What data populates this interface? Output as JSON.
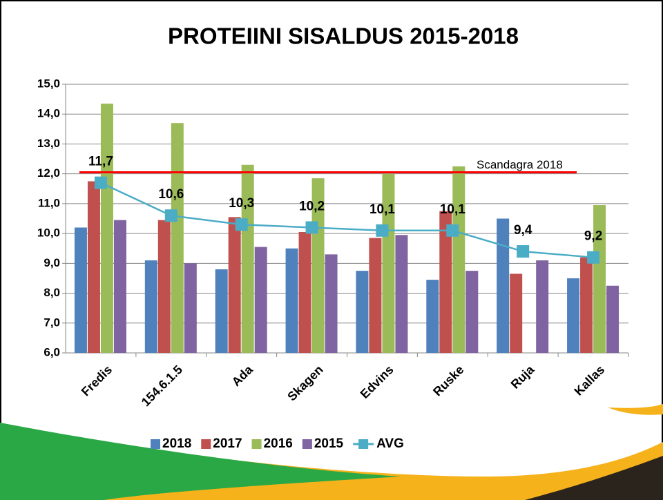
{
  "chart_data": {
    "type": "bar",
    "title": "PROTEIINI SISALDUS 2015-2018",
    "categories": [
      "Fredis",
      "154.6.1.5",
      "Ada",
      "Skagen",
      "Edvins",
      "Ruske",
      "Ruja",
      "Kallas"
    ],
    "series": [
      {
        "name": "2018",
        "color": "#4f81bd",
        "values": [
          10.2,
          9.1,
          8.8,
          9.5,
          8.75,
          8.45,
          10.5,
          8.5
        ]
      },
      {
        "name": "2017",
        "color": "#c0504d",
        "values": [
          11.75,
          10.45,
          10.55,
          10.05,
          9.85,
          10.75,
          8.65,
          9.2
        ]
      },
      {
        "name": "2016",
        "color": "#9bbb59",
        "values": [
          14.35,
          13.7,
          12.3,
          11.85,
          12.0,
          12.25,
          null,
          10.95
        ]
      },
      {
        "name": "2015",
        "color": "#8064a2",
        "values": [
          10.45,
          9.0,
          9.55,
          9.3,
          9.95,
          8.75,
          9.1,
          8.25
        ]
      },
      {
        "name": "AVG",
        "type": "line",
        "color": "#4bacc6",
        "values": [
          11.7,
          10.6,
          10.3,
          10.2,
          10.1,
          10.1,
          9.4,
          9.2
        ],
        "value_labels": [
          "11,7",
          "10,6",
          "10,3",
          "10,2",
          "10,1",
          "10,1",
          "9,4",
          "9,2"
        ]
      }
    ],
    "reference_line": {
      "value": 12.05,
      "label": "Scandagra 2018",
      "color": "#ff0000"
    },
    "ylim": [
      6,
      15
    ],
    "yticks": [
      {
        "value": 6,
        "label": "6,0"
      },
      {
        "value": 7,
        "label": "7,0"
      },
      {
        "value": 8,
        "label": "8,0"
      },
      {
        "value": 9,
        "label": "9,0"
      },
      {
        "value": 10,
        "label": "10,0"
      },
      {
        "value": 11,
        "label": "11,0"
      },
      {
        "value": 12,
        "label": "12,0"
      },
      {
        "value": 13,
        "label": "13,0"
      },
      {
        "value": 14,
        "label": "14,0"
      },
      {
        "value": 15,
        "label": "15,0"
      }
    ],
    "grid": true,
    "legend": "bottom"
  }
}
